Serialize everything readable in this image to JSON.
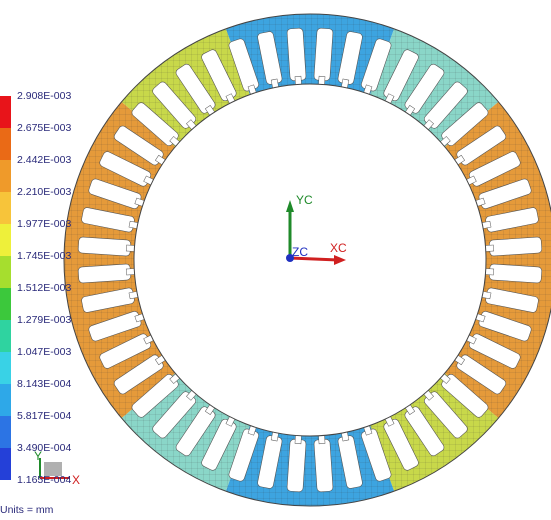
{
  "legend": {
    "labels": [
      "2.908E-003",
      "2.675E-003",
      "2.442E-003",
      "2.210E-003",
      "1.977E-003",
      "1.745E-003",
      "1.512E-003",
      "1.279E-003",
      "1.047E-003",
      "8.143E-004",
      "5.817E-004",
      "3.490E-004",
      "1.165E-004"
    ],
    "colors": [
      "#e8141a",
      "#ea6a16",
      "#ef9a2a",
      "#f7c43a",
      "#eef03a",
      "#a6de2e",
      "#3cc83c",
      "#2fd3a0",
      "#39d2e6",
      "#2ea8e8",
      "#2c74e4",
      "#2440d8"
    ]
  },
  "units": {
    "text": "Units = mm"
  },
  "axes": {
    "x_label": "XC",
    "y_label": "YC",
    "z_label": "ZC",
    "mini_x": "X",
    "mini_y": "Y"
  },
  "model": {
    "outer_color": "#d4d03a",
    "inner_color": "#ffffff",
    "slot_count": 48
  }
}
